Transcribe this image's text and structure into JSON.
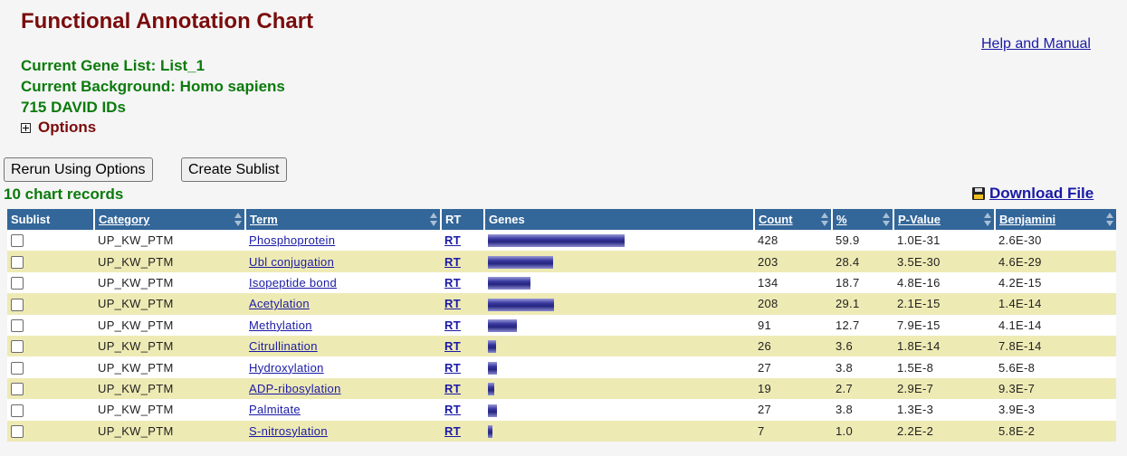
{
  "header": {
    "title": "Functional Annotation Chart",
    "help_label": "Help and Manual",
    "gene_list_line": "Current Gene List: List_1",
    "background_line": "Current Background: Homo sapiens",
    "ids_line": "715 DAVID IDs",
    "options_label": "Options"
  },
  "toolbar": {
    "rerun_label": "Rerun Using Options",
    "sublist_label": "Create Sublist"
  },
  "records_label": "10 chart records",
  "download_label": "Download File",
  "table": {
    "columns": [
      "Sublist",
      "Category",
      "Term",
      "RT",
      "Genes",
      "Count",
      "%",
      "P-Value",
      "Benjamini"
    ],
    "rows": [
      {
        "category": "UP_KW_PTM",
        "term": "Phosphoprotein",
        "rt": "RT",
        "count": "428",
        "percent": "59.9",
        "pvalue": "1.0E-31",
        "benjamini": "2.6E-30"
      },
      {
        "category": "UP_KW_PTM",
        "term": "Ubl conjugation",
        "rt": "RT",
        "count": "203",
        "percent": "28.4",
        "pvalue": "3.5E-30",
        "benjamini": "4.6E-29"
      },
      {
        "category": "UP_KW_PTM",
        "term": "Isopeptide bond",
        "rt": "RT",
        "count": "134",
        "percent": "18.7",
        "pvalue": "4.8E-16",
        "benjamini": "4.2E-15"
      },
      {
        "category": "UP_KW_PTM",
        "term": "Acetylation",
        "rt": "RT",
        "count": "208",
        "percent": "29.1",
        "pvalue": "2.1E-15",
        "benjamini": "1.4E-14"
      },
      {
        "category": "UP_KW_PTM",
        "term": "Methylation",
        "rt": "RT",
        "count": "91",
        "percent": "12.7",
        "pvalue": "7.9E-15",
        "benjamini": "4.1E-14"
      },
      {
        "category": "UP_KW_PTM",
        "term": "Citrullination",
        "rt": "RT",
        "count": "26",
        "percent": "3.6",
        "pvalue": "1.8E-14",
        "benjamini": "7.8E-14"
      },
      {
        "category": "UP_KW_PTM",
        "term": "Hydroxylation",
        "rt": "RT",
        "count": "27",
        "percent": "3.8",
        "pvalue": "1.5E-8",
        "benjamini": "5.6E-8"
      },
      {
        "category": "UP_KW_PTM",
        "term": "ADP-ribosylation",
        "rt": "RT",
        "count": "19",
        "percent": "2.7",
        "pvalue": "2.9E-7",
        "benjamini": "9.3E-7"
      },
      {
        "category": "UP_KW_PTM",
        "term": "Palmitate",
        "rt": "RT",
        "count": "27",
        "percent": "3.8",
        "pvalue": "1.3E-3",
        "benjamini": "3.9E-3"
      },
      {
        "category": "UP_KW_PTM",
        "term": "S-nitrosylation",
        "rt": "RT",
        "count": "7",
        "percent": "1.0",
        "pvalue": "2.2E-2",
        "benjamini": "5.8E-2"
      }
    ]
  },
  "colors": {
    "title": "#7a0c0c",
    "info": "#0c7a0c",
    "header_bg": "#336699",
    "row_alt": "#eeeab4",
    "link": "#1a1aa6"
  },
  "icons": {
    "options": "plus-box-icon",
    "download": "floppy-disk-icon",
    "sort": "sort-arrows-icon"
  }
}
